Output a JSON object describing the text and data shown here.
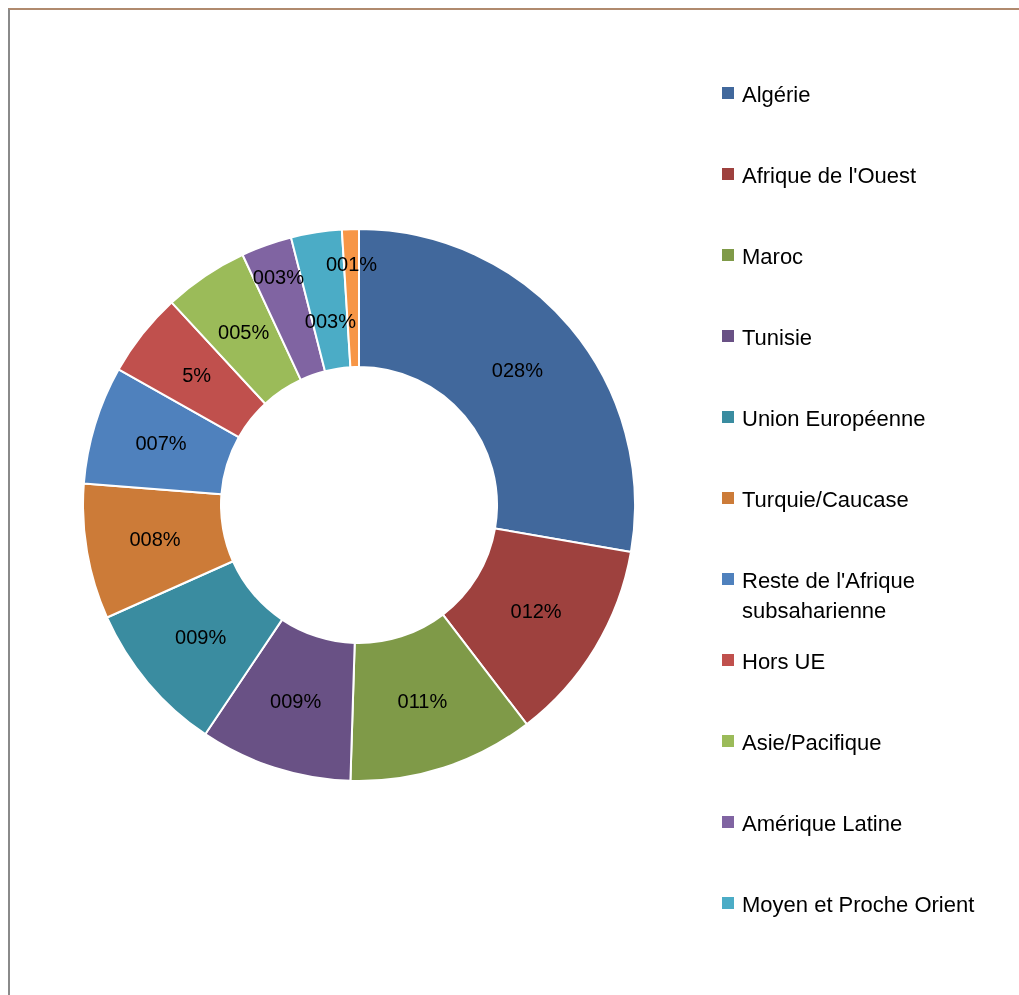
{
  "chart_data": {
    "type": "donut",
    "categories": [
      "Algérie",
      "Afrique de l'Ouest",
      "Maroc",
      "Tunisie",
      "Union Européenne",
      "Turquie/Caucase",
      "Reste de l'Afrique subsaharienne",
      "Hors UE",
      "Asie/Pacifique",
      "Amérique Latine",
      "Moyen et Proche Orient",
      null
    ],
    "values": [
      28,
      12,
      11,
      9,
      9,
      8,
      7,
      5,
      5,
      3,
      3,
      1
    ],
    "value_labels": [
      "028%",
      "012%",
      "011%",
      "009%",
      "009%",
      "008%",
      "007%",
      "5%",
      "005%",
      "003%",
      "003%",
      "001%"
    ],
    "colors": [
      "#41689c",
      "#9e413e",
      "#7f9a48",
      "#695185",
      "#3a8ca0",
      "#cc7b38",
      "#4f81bd",
      "#c0504d",
      "#9bbb59",
      "#8064a2",
      "#4bacc6",
      "#f79646"
    ],
    "legend": "right"
  }
}
